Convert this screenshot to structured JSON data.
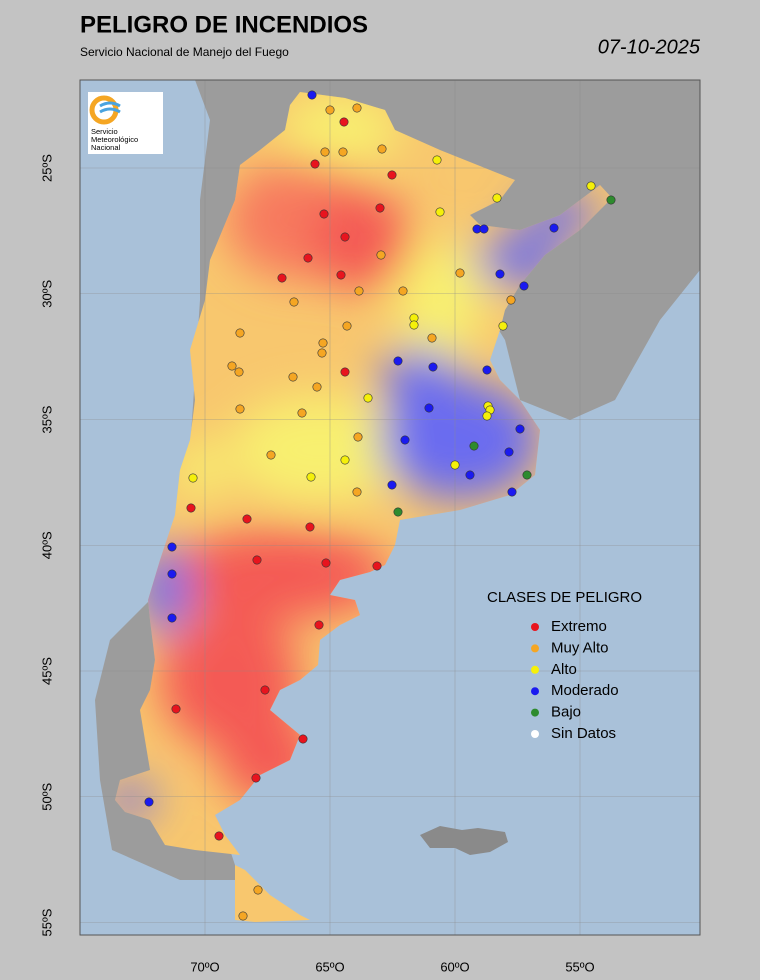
{
  "header": {
    "title": "PELIGRO DE INCENDIOS",
    "subtitle": "Servicio Nacional de Manejo del Fuego",
    "date": "07-10-2025"
  },
  "logo": {
    "lines": [
      "Servicio",
      "Meteorológico",
      "Nacional"
    ]
  },
  "grid": {
    "lat_ticks": [
      {
        "value": -25,
        "label": "25ºS"
      },
      {
        "value": -30,
        "label": "30ºS"
      },
      {
        "value": -35,
        "label": "35ºS"
      },
      {
        "value": -40,
        "label": "40ºS"
      },
      {
        "value": -45,
        "label": "45ºS"
      },
      {
        "value": -50,
        "label": "50ºS"
      },
      {
        "value": -55,
        "label": "55ºS"
      }
    ],
    "lon_ticks": [
      {
        "value": -70,
        "label": "70ºO"
      },
      {
        "value": -65,
        "label": "65ºO"
      },
      {
        "value": -60,
        "label": "60ºO"
      },
      {
        "value": -55,
        "label": "55ºO"
      }
    ]
  },
  "legend": {
    "title": "CLASES DE PELIGRO",
    "items": [
      {
        "label": "Extremo",
        "color": "#e8141e"
      },
      {
        "label": "Muy Alto",
        "color": "#f5a623"
      },
      {
        "label": "Alto",
        "color": "#f5f00a"
      },
      {
        "label": "Moderado",
        "color": "#1a1af0"
      },
      {
        "label": "Bajo",
        "color": "#2e8b2e"
      },
      {
        "label": "Sin Datos",
        "color": "#ffffff"
      }
    ]
  }
}
